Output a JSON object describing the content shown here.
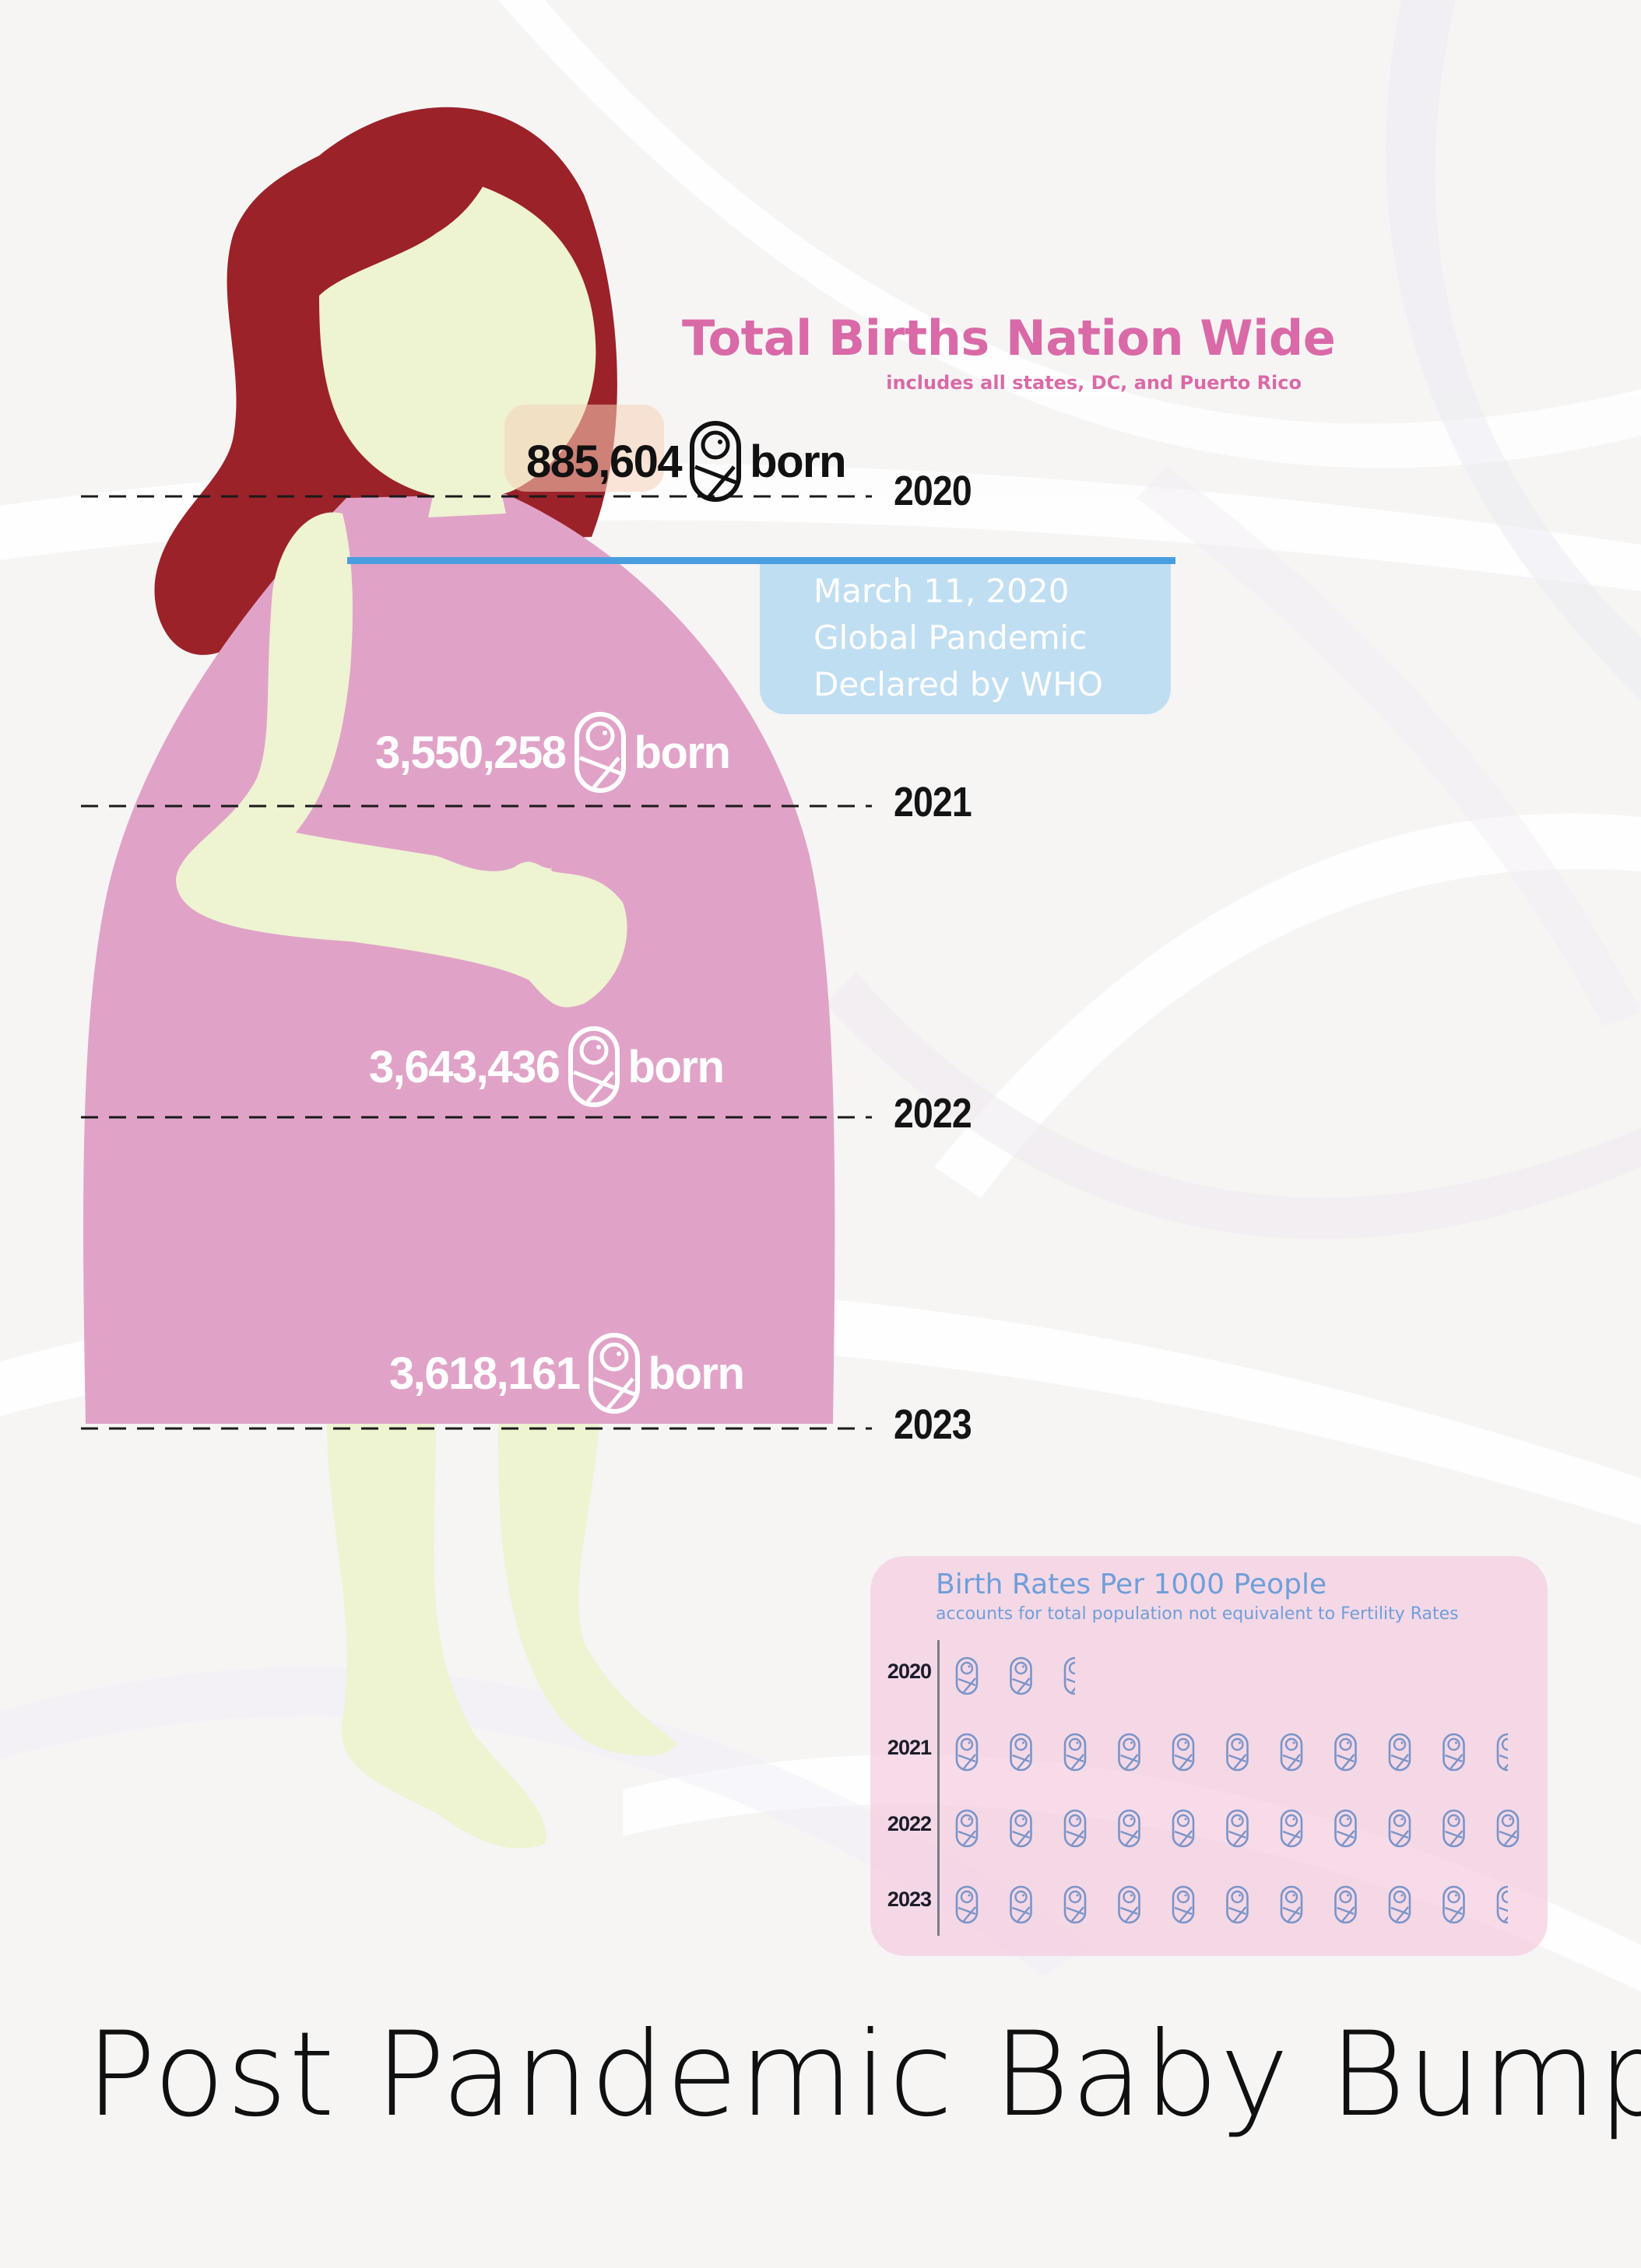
{
  "poster": {
    "title": "Post Pandemic Baby Bump",
    "colors": {
      "hair": "#9b2229",
      "skin": "#eef3d2",
      "dress": "#e0a3c7",
      "title_pink": "#d96aa7",
      "accent_blue": "#4a9ee0",
      "rate_blue": "#6f9fd9"
    }
  },
  "total_births": {
    "title": "Total Births Nation Wide",
    "subtitle": "includes all states, DC, and Puerto Rico",
    "icon": "swaddled-baby-icon",
    "born_label": "born",
    "rows": [
      {
        "year": "2020",
        "count": "885,604"
      },
      {
        "year": "2021",
        "count": "3,550,258"
      },
      {
        "year": "2022",
        "count": "3,643,436"
      },
      {
        "year": "2023",
        "count": "3,618,161"
      }
    ]
  },
  "pandemic_note": {
    "line1": "March 11, 2020",
    "line2": "Global Pandemic",
    "line3": "Declared by WHO"
  },
  "birth_rates": {
    "title": "Birth Rates Per 1000 People",
    "subtitle": "accounts for total population not equivalent to Fertility Rates",
    "icon": "swaddled-baby-icon",
    "rows": [
      {
        "year": "2020",
        "icons": 2.5
      },
      {
        "year": "2021",
        "icons": 10.5
      },
      {
        "year": "2022",
        "icons": 11
      },
      {
        "year": "2023",
        "icons": 10.5
      }
    ]
  }
}
